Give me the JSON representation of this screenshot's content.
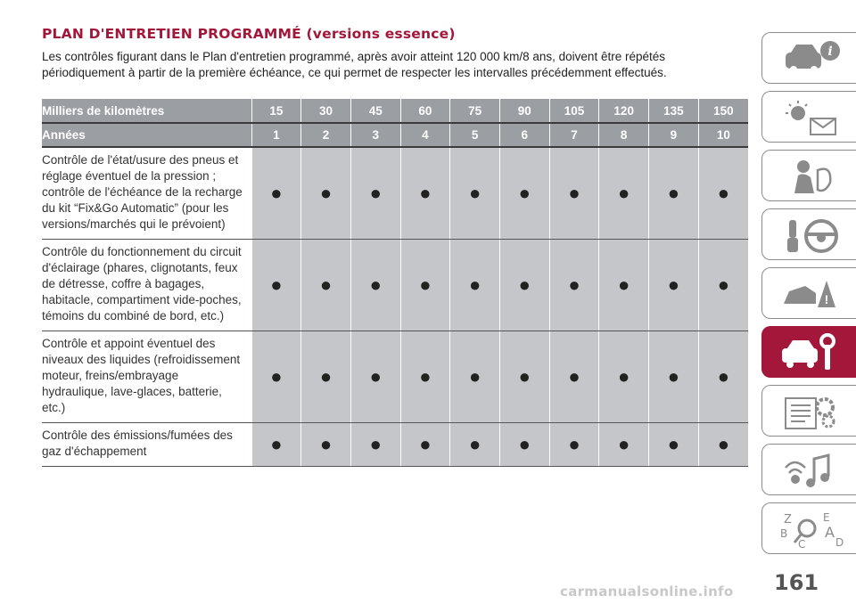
{
  "title": "PLAN D'ENTRETIEN PROGRAMMÉ (versions essence)",
  "intro": "Les contrôles figurant dans le Plan d'entretien programmé, après avoir atteint 120 000 km/8 ans, doivent être répétés périodiquement à partir de la première échéance, ce qui permet de respecter les intervalles précédemment effectués.",
  "table": {
    "km_label": "Milliers de kilomètres",
    "km": [
      "15",
      "30",
      "45",
      "60",
      "75",
      "90",
      "105",
      "120",
      "135",
      "150"
    ],
    "years_label": "Années",
    "years": [
      "1",
      "2",
      "3",
      "4",
      "5",
      "6",
      "7",
      "8",
      "9",
      "10"
    ],
    "rows": [
      {
        "label": "Contrôle de l'état/usure des pneus et réglage éventuel de la pression ; contrôle de l'échéance de la recharge du kit “Fix&Go Automatic” (pour les versions/marchés qui le prévoient)",
        "marks": [
          "●",
          "●",
          "●",
          "●",
          "●",
          "●",
          "●",
          "●",
          "●",
          "●"
        ]
      },
      {
        "label": "Contrôle du fonctionnement du circuit d'éclairage (phares, clignotants, feux de détresse, coffre à bagages, habitacle, compartiment vide-poches, témoins du combiné de bord, etc.)",
        "marks": [
          "●",
          "●",
          "●",
          "●",
          "●",
          "●",
          "●",
          "●",
          "●",
          "●"
        ]
      },
      {
        "label": "Contrôle et appoint éventuel des niveaux des liquides (refroidissement moteur, freins/embrayage hydraulique, lave-glaces, batterie, etc.)",
        "marks": [
          "●",
          "●",
          "●",
          "●",
          "●",
          "●",
          "●",
          "●",
          "●",
          "●"
        ]
      },
      {
        "label": "Contrôle des émissions/fumées des gaz d'échappement",
        "marks": [
          "●",
          "●",
          "●",
          "●",
          "●",
          "●",
          "●",
          "●",
          "●",
          "●"
        ]
      }
    ]
  },
  "sidebar": {
    "tabs": [
      {
        "icon": "car-info-icon"
      },
      {
        "icon": "warning-lights-icon"
      },
      {
        "icon": "safety-airbag-icon"
      },
      {
        "icon": "key-steering-wheel-icon"
      },
      {
        "icon": "car-accident-icon"
      },
      {
        "icon": "car-maintenance-icon",
        "active": true
      },
      {
        "icon": "technical-data-gear-icon"
      },
      {
        "icon": "multimedia-icon"
      },
      {
        "icon": "index-search-icon"
      }
    ],
    "active_color": "#a3173a"
  },
  "page_number": "161",
  "watermark": "carmanualsonline.info"
}
